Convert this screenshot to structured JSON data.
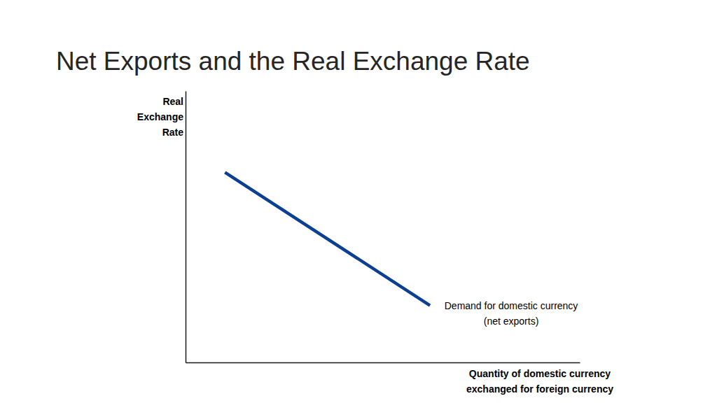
{
  "chart_data": {
    "type": "line",
    "title": "Net Exports and the Real Exchange Rate",
    "x_label": [
      "Quantity of domestic currency",
      "exchanged for foreign currency"
    ],
    "y_label": [
      "Real",
      "Exchange",
      "Rate"
    ],
    "x": [
      1,
      6.2
    ],
    "series": [
      {
        "name": [
          "Demand for domestic currency",
          "(net exports)"
        ],
        "color": "#0b3f91",
        "values": [
          7,
          2.1
        ]
      }
    ],
    "xlim": [
      0,
      10
    ],
    "ylim": [
      0,
      10
    ],
    "tick_labels": false,
    "grid": false
  }
}
